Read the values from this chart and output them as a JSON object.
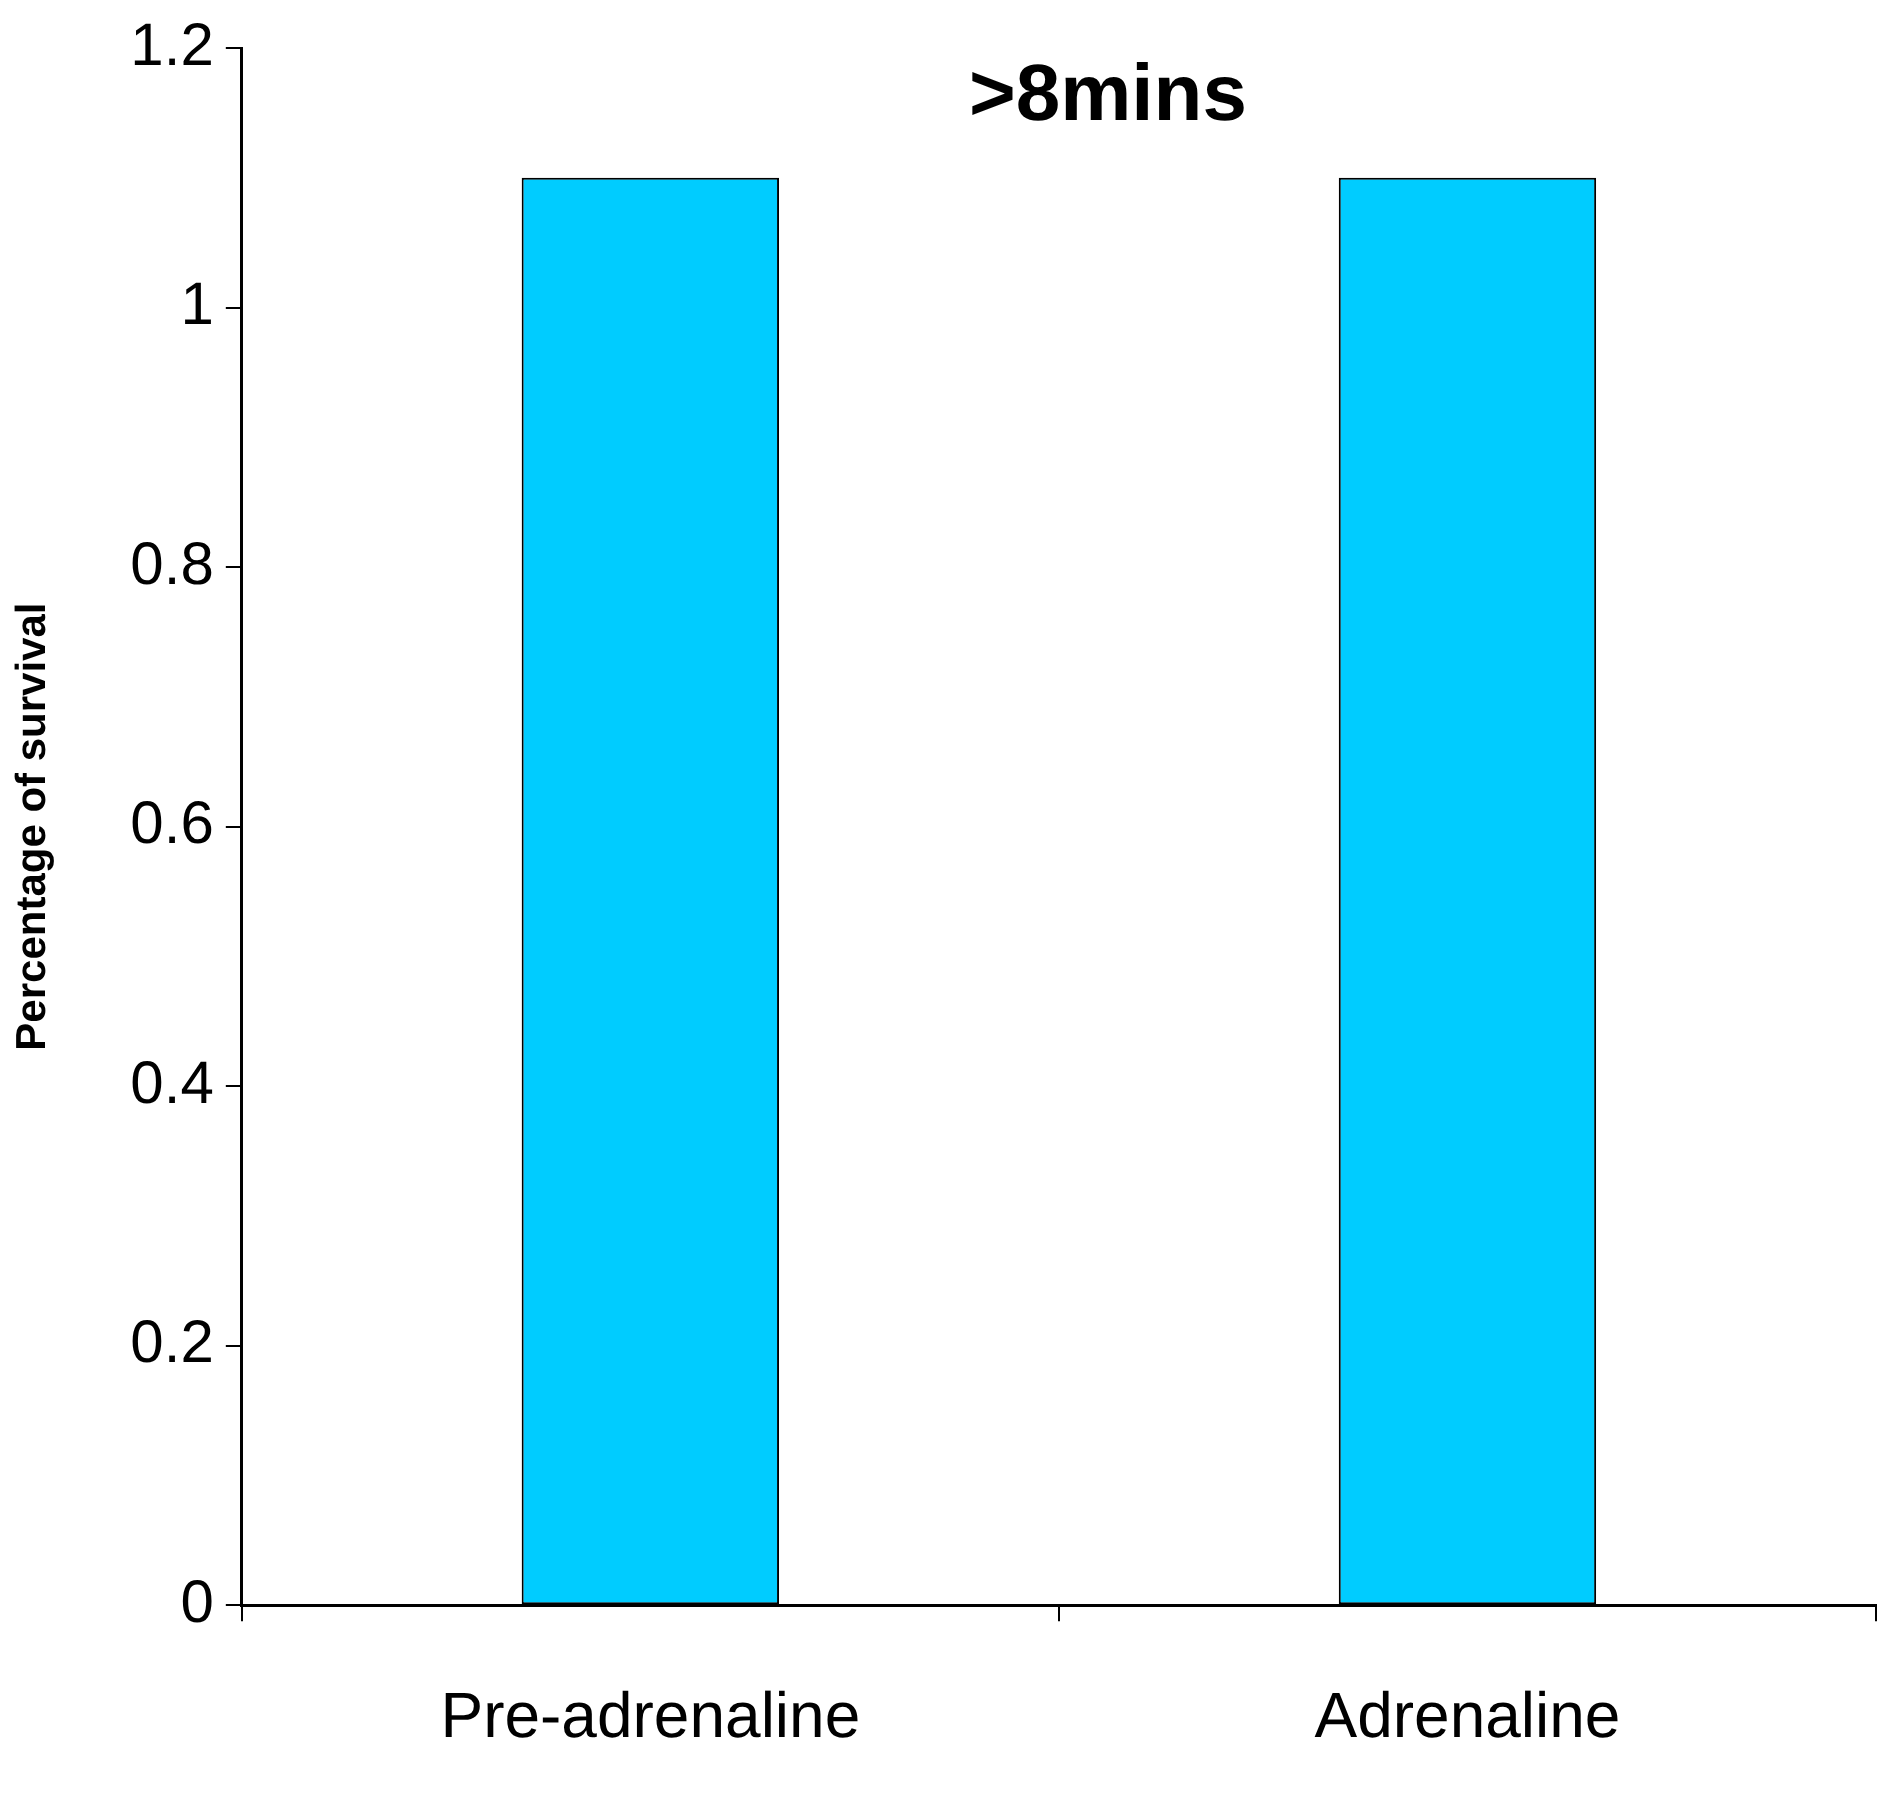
{
  "chart_data": {
    "type": "bar",
    "title": ">8mins",
    "ylabel": "Percentage of survival",
    "categories": [
      "Pre-adrenaline",
      "Adrenaline"
    ],
    "values": [
      1.1,
      1.1
    ],
    "color": "#00ccff",
    "ylim": [
      0,
      1.2
    ],
    "yticks": [
      0,
      0.2,
      0.4,
      0.6,
      0.8,
      1,
      1.2
    ],
    "grid": false,
    "legend": false
  }
}
